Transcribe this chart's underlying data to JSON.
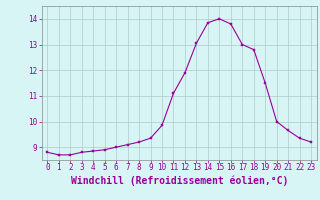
{
  "x": [
    0,
    1,
    2,
    3,
    4,
    5,
    6,
    7,
    8,
    9,
    10,
    11,
    12,
    13,
    14,
    15,
    16,
    17,
    18,
    19,
    20,
    21,
    22,
    23
  ],
  "y": [
    8.8,
    8.7,
    8.7,
    8.8,
    8.85,
    8.9,
    9.0,
    9.1,
    9.2,
    9.35,
    9.85,
    11.1,
    11.9,
    13.05,
    13.85,
    14.0,
    13.8,
    13.0,
    12.8,
    11.5,
    10.0,
    9.65,
    9.35,
    9.2
  ],
  "xlim": [
    -0.5,
    23.5
  ],
  "ylim": [
    8.5,
    14.5
  ],
  "yticks": [
    9,
    10,
    11,
    12,
    13,
    14
  ],
  "xticks": [
    0,
    1,
    2,
    3,
    4,
    5,
    6,
    7,
    8,
    9,
    10,
    11,
    12,
    13,
    14,
    15,
    16,
    17,
    18,
    19,
    20,
    21,
    22,
    23
  ],
  "xlabel": "Windchill (Refroidissement éolien,°C)",
  "line_color": "#990099",
  "marker_color": "#990099",
  "bg_color": "#d8f5f5",
  "grid_color": "#b0c8c8",
  "tick_label_color": "#990099",
  "xlabel_color": "#990099",
  "spine_color": "#888888",
  "tick_fontsize": 5.5,
  "xlabel_fontsize": 7.0
}
